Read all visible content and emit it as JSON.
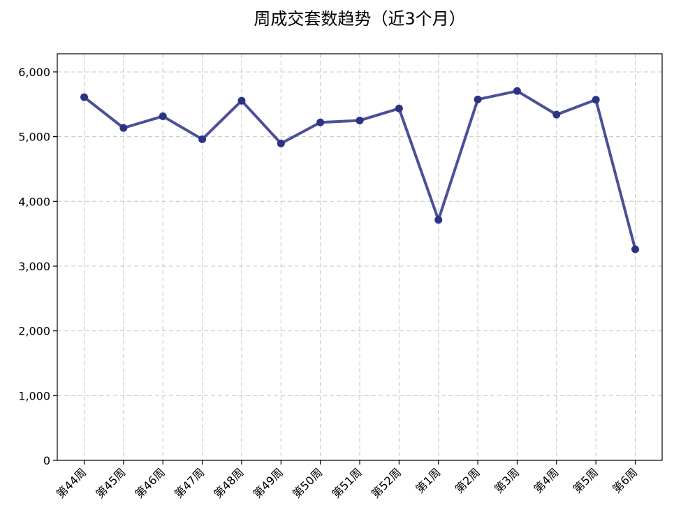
{
  "chart_data": {
    "type": "line",
    "title": "周成交套数趋势（近3个月）",
    "xlabel": "",
    "ylabel": "",
    "categories": [
      "第44周",
      "第45周",
      "第46周",
      "第47周",
      "第48周",
      "第49周",
      "第50周",
      "第51周",
      "第52周",
      "第1周",
      "第2周",
      "第3周",
      "第4周",
      "第5周",
      "第6周"
    ],
    "series": [
      {
        "values": [
          5610,
          5135,
          5315,
          4960,
          5555,
          4895,
          5220,
          5250,
          5435,
          3715,
          5575,
          5705,
          5340,
          5570,
          3260
        ],
        "color": "#2b3384"
      }
    ],
    "ylim": [
      0,
      6280
    ],
    "yticks": [
      0,
      1000,
      2000,
      3000,
      4000,
      5000,
      6000
    ],
    "ytick_labels": [
      "0",
      "1,000",
      "2,000",
      "3,000",
      "4,000",
      "5,000",
      "6,000"
    ],
    "grid": true,
    "legend": false
  }
}
